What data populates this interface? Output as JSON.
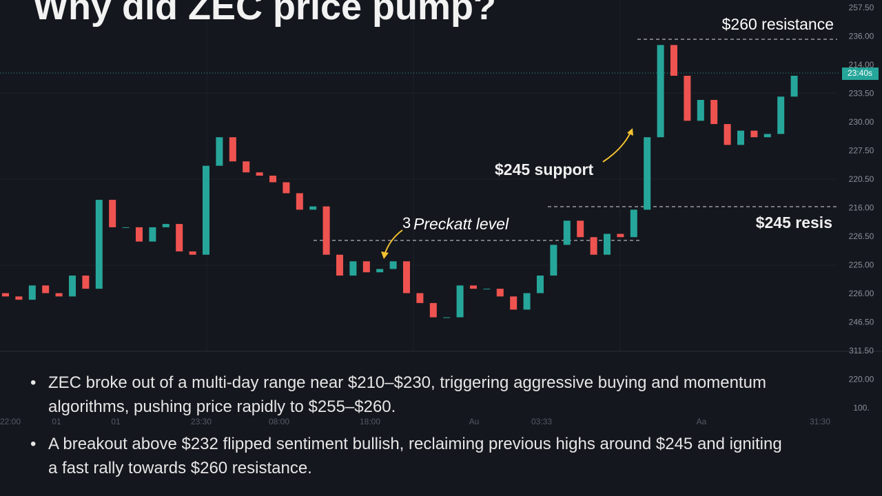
{
  "title": "Why did ZEC price pump?",
  "chart_data": {
    "type": "candlestick",
    "open": [
      237.3,
      237.0,
      236.7,
      238.0,
      237.3,
      237.0,
      238.9,
      237.7,
      245.8,
      243.3,
      243.3,
      242.0,
      243.3,
      243.6,
      241.1,
      240.8,
      248.9,
      251.5,
      249.3,
      248.3,
      248.0,
      247.4,
      246.4,
      244.9,
      245.2,
      240.8,
      238.9,
      240.2,
      239.2,
      239.5,
      240.2,
      237.3,
      236.4,
      235.1,
      235.1,
      238.0,
      237.7,
      237.7,
      237.0,
      235.8,
      237.3,
      238.9,
      241.7,
      243.9,
      242.4,
      240.8,
      242.7,
      242.4,
      244.9,
      251.5,
      259.9,
      257.1,
      253.0,
      254.9,
      252.7,
      250.8,
      252.1,
      251.5,
      251.8,
      255.2
    ],
    "close": [
      237.0,
      236.7,
      238.0,
      237.3,
      237.0,
      238.9,
      237.7,
      245.8,
      243.3,
      243.3,
      242.0,
      243.3,
      243.6,
      241.1,
      240.8,
      248.9,
      251.5,
      249.3,
      248.3,
      248.0,
      247.4,
      246.4,
      244.9,
      245.2,
      240.8,
      238.9,
      240.2,
      239.2,
      239.5,
      240.2,
      237.3,
      236.4,
      235.1,
      235.1,
      238.0,
      237.7,
      237.7,
      237.0,
      235.8,
      237.3,
      238.9,
      241.7,
      243.9,
      242.4,
      240.8,
      242.7,
      242.4,
      244.9,
      251.5,
      259.9,
      257.1,
      253.0,
      254.9,
      252.7,
      250.8,
      252.1,
      251.5,
      251.8,
      255.2,
      257.1
    ],
    "ylim": [
      232,
      264
    ],
    "up_color": "#26a69a",
    "down_color": "#ef5350"
  },
  "price_axis_labels": [
    "257.50",
    "236.00",
    "214.00",
    "233.50",
    "230.00",
    "227.50",
    "220.50",
    "216.00",
    "226.50",
    "225.00",
    "226.00",
    "246.50",
    "311.50",
    "220.00",
    "100."
  ],
  "time_labels": [
    "22:00",
    "01",
    "01",
    "23:30",
    "08:00",
    "18:00",
    "Au",
    "03:33",
    "Aa",
    "31:30"
  ],
  "price_tag": "23:40s",
  "annotations": {
    "resistance_260": "$260 resistance",
    "support_245": "$245 support",
    "level_prefix": "3",
    "level": "Preckatt level",
    "resistance_245": "$245 resis"
  },
  "bullets": [
    "ZEC broke out of a multi-day range near $210–$230, triggering aggressive buying and momentum algorithms, pushing price rapidly to $255–$260.",
    "A breakout above $232 flipped sentiment bullish, reclaiming previous highs around $245 and igniting a fast rally towards $260 resistance."
  ]
}
